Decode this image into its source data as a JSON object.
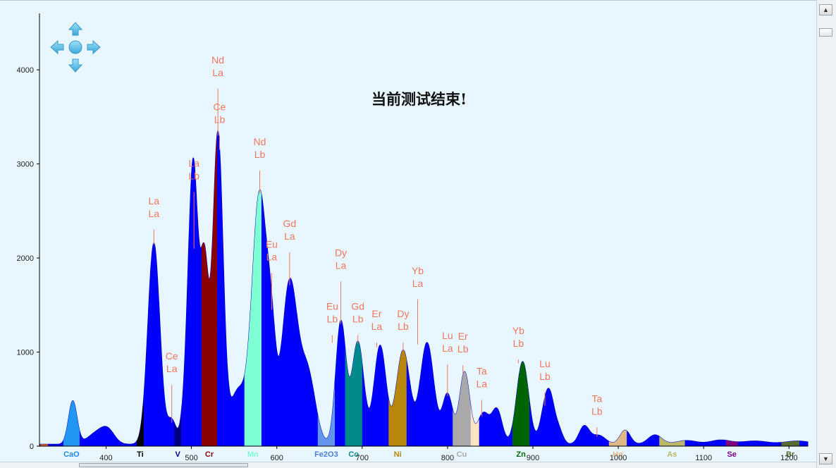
{
  "status_message": "当前测试结束!",
  "chart_data": {
    "type": "area",
    "xlim": [
      322,
      1222
    ],
    "ylim": [
      0,
      4600
    ],
    "x_ticks": [
      400,
      500,
      600,
      700,
      800,
      900,
      1000,
      1100,
      1200
    ],
    "y_ticks": [
      0,
      1000,
      2000,
      3000,
      4000
    ],
    "grid": false,
    "series_color": "#0000ff",
    "peaks": [
      {
        "x": 361,
        "y": 460,
        "w": 5
      },
      {
        "x": 388,
        "y": 110,
        "w": 10
      },
      {
        "x": 402,
        "y": 140,
        "w": 8
      },
      {
        "x": 456,
        "y": 2140,
        "w": 7
      },
      {
        "x": 477,
        "y": 250,
        "w": 5
      },
      {
        "x": 498,
        "y": 1150,
        "w": 6
      },
      {
        "x": 503,
        "y": 2100,
        "w": 5
      },
      {
        "x": 515,
        "y": 1900,
        "w": 5
      },
      {
        "x": 531,
        "y": 3300,
        "w": 6
      },
      {
        "x": 554,
        "y": 550,
        "w": 9
      },
      {
        "x": 580,
        "y": 2680,
        "w": 9
      },
      {
        "x": 594,
        "y": 700,
        "w": 5
      },
      {
        "x": 615,
        "y": 1710,
        "w": 9
      },
      {
        "x": 636,
        "y": 750,
        "w": 9
      },
      {
        "x": 675,
        "y": 1300,
        "w": 6
      },
      {
        "x": 695,
        "y": 1090,
        "w": 7
      },
      {
        "x": 721,
        "y": 1050,
        "w": 7
      },
      {
        "x": 748,
        "y": 1000,
        "w": 8
      },
      {
        "x": 776,
        "y": 1080,
        "w": 8
      },
      {
        "x": 800,
        "y": 530,
        "w": 6
      },
      {
        "x": 820,
        "y": 770,
        "w": 6
      },
      {
        "x": 842,
        "y": 330,
        "w": 7
      },
      {
        "x": 858,
        "y": 360,
        "w": 6
      },
      {
        "x": 888,
        "y": 880,
        "w": 7
      },
      {
        "x": 915,
        "y": 400,
        "w": 6
      },
      {
        "x": 921,
        "y": 280,
        "w": 5
      },
      {
        "x": 930,
        "y": 150,
        "w": 5
      },
      {
        "x": 960,
        "y": 190,
        "w": 6
      },
      {
        "x": 977,
        "y": 95,
        "w": 8
      },
      {
        "x": 1008,
        "y": 150,
        "w": 6
      },
      {
        "x": 1043,
        "y": 100,
        "w": 8
      },
      {
        "x": 1080,
        "y": 40,
        "w": 12
      },
      {
        "x": 1120,
        "y": 45,
        "w": 12
      },
      {
        "x": 1160,
        "y": 35,
        "w": 15
      },
      {
        "x": 1210,
        "y": 35,
        "w": 15
      }
    ],
    "baseline": 20,
    "bands": [
      {
        "from": 323,
        "to": 332,
        "color": "#e0622a",
        "label": ""
      },
      {
        "from": 350,
        "to": 369,
        "color": "#2196f3",
        "label": "CaO",
        "label_color": "#1e88e5"
      },
      {
        "from": 436,
        "to": 444,
        "color": "#000000",
        "label": "Ti",
        "label_color": "#000000"
      },
      {
        "from": 480,
        "to": 488,
        "color": "#000080",
        "label": "V",
        "label_color": "#000080"
      },
      {
        "from": 512,
        "to": 530,
        "color": "#8b0000",
        "label": "Cr",
        "label_color": "#8b0000"
      },
      {
        "from": 562,
        "to": 582,
        "color": "#7fffd4",
        "label": "Mn",
        "label_color": "#7fffd4"
      },
      {
        "from": 648,
        "to": 668,
        "color": "#6495ed",
        "label": "Fe2O3",
        "label_color": "#4a7fd8"
      },
      {
        "from": 680,
        "to": 700,
        "color": "#008b8b",
        "label": "Co",
        "label_color": "#008b8b"
      },
      {
        "from": 731,
        "to": 752,
        "color": "#b8860b",
        "label": "Ni",
        "label_color": "#b8860b"
      },
      {
        "from": 806,
        "to": 827,
        "color": "#a9a9a9",
        "label": "Cu",
        "label_color": "#a9a9a9"
      },
      {
        "from": 827,
        "to": 837,
        "color": "#ffe4c4",
        "label": "",
        "label_color": "#ffe4c4"
      },
      {
        "from": 876,
        "to": 896,
        "color": "#006400",
        "label": "Zn",
        "label_color": "#006400"
      },
      {
        "from": 989,
        "to": 1010,
        "color": "#deb887",
        "label": "Hg",
        "label_color": "#deb887"
      },
      {
        "from": 1048,
        "to": 1078,
        "color": "#bdb76b",
        "label": "As",
        "label_color": "#bdb76b"
      },
      {
        "from": 1126,
        "to": 1140,
        "color": "#800080",
        "label": "Se",
        "label_color": "#800080"
      },
      {
        "from": 1191,
        "to": 1212,
        "color": "#556b2f",
        "label": "Br",
        "label_color": "#556b2f"
      }
    ],
    "annotations": [
      {
        "x": 456,
        "y": 2140,
        "lines": [
          "La",
          "La"
        ],
        "label_y": 2450
      },
      {
        "x": 477,
        "y": 250,
        "lines": [
          "Ce",
          "La"
        ],
        "label_y": 800
      },
      {
        "x": 503,
        "y": 2100,
        "lines": [
          "La",
          "Lb"
        ],
        "label_y": 2850
      },
      {
        "x": 531,
        "y": 3300,
        "lines": [
          "Nd",
          "La"
        ],
        "label_y": 3950
      },
      {
        "x": 533,
        "y": 3150,
        "lines": [
          "Ce",
          "Lb"
        ],
        "label_y": 3450
      },
      {
        "x": 580,
        "y": 2680,
        "lines": [
          "Nd",
          "Lb"
        ],
        "label_y": 3080
      },
      {
        "x": 594,
        "y": 1450,
        "lines": [
          "Eu",
          "La"
        ],
        "label_y": 1990
      },
      {
        "x": 615,
        "y": 1710,
        "lines": [
          "Gd",
          "La"
        ],
        "label_y": 2210
      },
      {
        "x": 665,
        "y": 1100,
        "lines": [
          "Eu",
          "Lb"
        ],
        "label_y": 1330
      },
      {
        "x": 675,
        "y": 1300,
        "lines": [
          "Dy",
          "La"
        ],
        "label_y": 1900
      },
      {
        "x": 695,
        "y": 1090,
        "lines": [
          "Gd",
          "Lb"
        ],
        "label_y": 1330
      },
      {
        "x": 717,
        "y": 1050,
        "lines": [
          "Er",
          "La"
        ],
        "label_y": 1250
      },
      {
        "x": 748,
        "y": 1000,
        "lines": [
          "Dy",
          "Lb"
        ],
        "label_y": 1250
      },
      {
        "x": 765,
        "y": 1080,
        "lines": [
          "Yb",
          "La"
        ],
        "label_y": 1710
      },
      {
        "x": 800,
        "y": 530,
        "lines": [
          "Lu",
          "La"
        ],
        "label_y": 1020
      },
      {
        "x": 818,
        "y": 770,
        "lines": [
          "Er",
          "Lb"
        ],
        "label_y": 1010
      },
      {
        "x": 840,
        "y": 320,
        "lines": [
          "Ta",
          "La"
        ],
        "label_y": 640
      },
      {
        "x": 883,
        "y": 880,
        "lines": [
          "Yb",
          "Lb"
        ],
        "label_y": 1070
      },
      {
        "x": 914,
        "y": 430,
        "lines": [
          "Lu",
          "Lb"
        ],
        "label_y": 720
      },
      {
        "x": 975,
        "y": 100,
        "lines": [
          "Ta",
          "Lb"
        ],
        "label_y": 350
      }
    ]
  }
}
